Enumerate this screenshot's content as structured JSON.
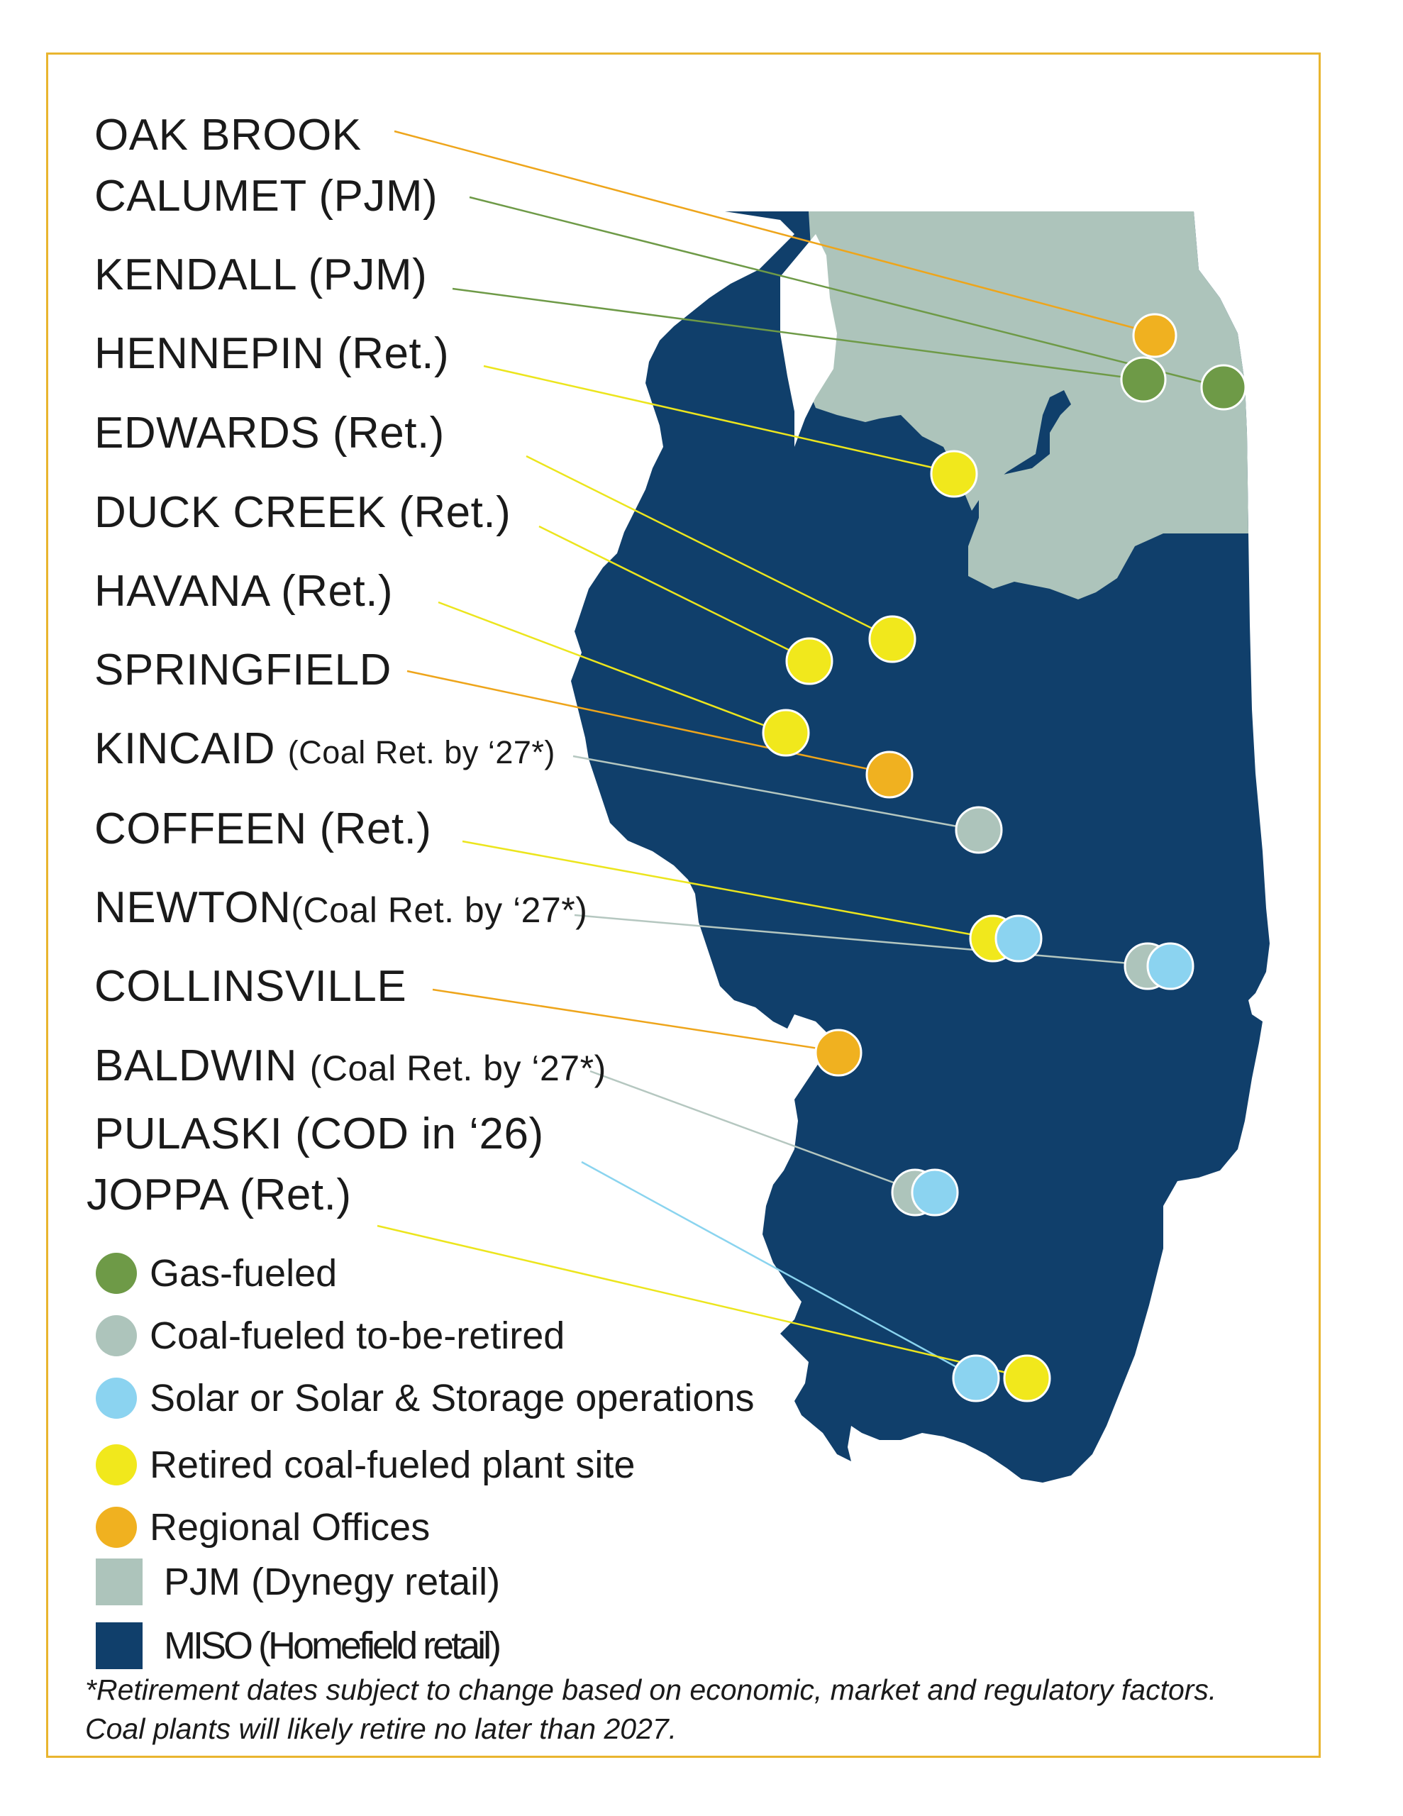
{
  "colors": {
    "frame": "#e9b52f",
    "miso": "#103f6b",
    "pjm": "#adc4bb",
    "gas": "#6e9a47",
    "coal_to_retire": "#adc4bb",
    "solar": "#8bd3f0",
    "retired": "#f1e81c",
    "office": "#f0b120",
    "line_gas": "#6e9a47",
    "line_retired": "#ece51d",
    "line_office": "#eea51b",
    "line_coal": "#b5c7c0",
    "line_solar": "#8ad4ef"
  },
  "plants": [
    {
      "name": "OAK BROOK",
      "note": ""
    },
    {
      "name": "CALUMET (PJM)",
      "note": ""
    },
    {
      "name": "KENDALL (PJM)",
      "note": ""
    },
    {
      "name": "HENNEPIN (Ret.)",
      "note": ""
    },
    {
      "name": "EDWARDS (Ret.)",
      "note": ""
    },
    {
      "name": "DUCK CREEK (Ret.)",
      "note": ""
    },
    {
      "name": "HAVANA (Ret.)",
      "note": ""
    },
    {
      "name": "SPRINGFIELD",
      "note": ""
    },
    {
      "name": "KINCAID",
      "note": "(Coal Ret. by ‘27*)"
    },
    {
      "name": "COFFEEN (Ret.)",
      "note": ""
    },
    {
      "name": "NEWTON",
      "note": "(Coal Ret. by ‘27*)"
    },
    {
      "name": "COLLINSVILLE",
      "note": ""
    },
    {
      "name": "BALDWIN",
      "note": "(Coal Ret. by ‘27*)"
    },
    {
      "name": "PULASKI (COD in ‘26)",
      "note": ""
    },
    {
      "name": "JOPPA (Ret.)",
      "note": ""
    }
  ],
  "legend": [
    {
      "label": "Gas-fueled",
      "kind": "gas"
    },
    {
      "label": "Coal-fueled to-be-retired",
      "kind": "coal_to_retire"
    },
    {
      "label": "Solar or Solar & Storage operations",
      "kind": "solar"
    },
    {
      "label": "Retired coal-fueled plant site",
      "kind": "retired"
    },
    {
      "label": "Regional Offices",
      "kind": "office"
    },
    {
      "label": "PJM (Dynegy retail)",
      "kind": "pjm"
    },
    {
      "label": "MISO (Homefield retail)",
      "kind": "miso"
    }
  ],
  "footnote": "*Retirement dates subject to change based on economic, market and regulatory factors. Coal plants will likely retire no later than 2027."
}
